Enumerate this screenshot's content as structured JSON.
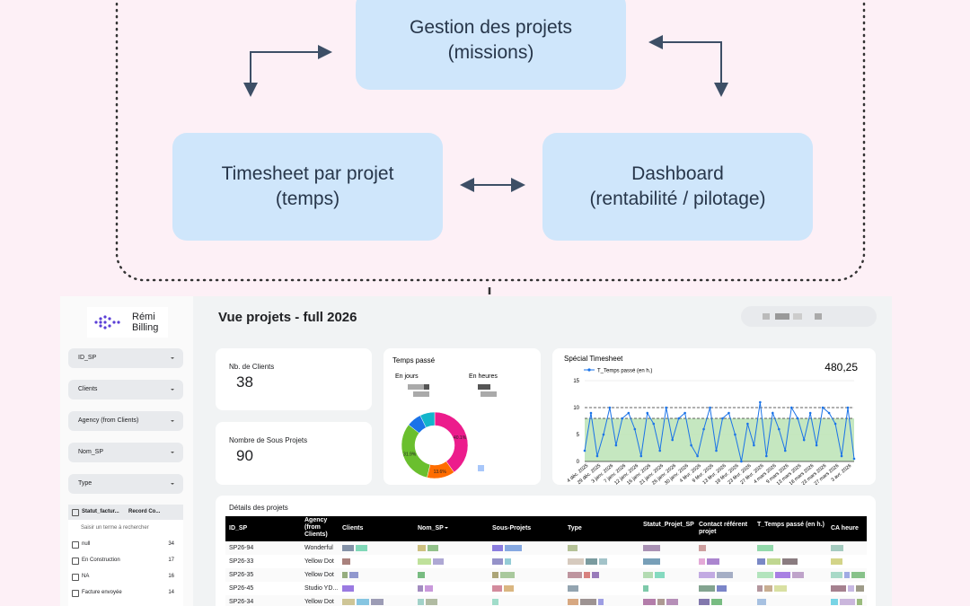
{
  "diagram": {
    "nodes": [
      {
        "lines": [
          "Gestion des projets",
          "(missions)"
        ]
      },
      {
        "lines": [
          "Timesheet par projet",
          "(temps)"
        ]
      },
      {
        "lines": [
          "Dashboard",
          "(rentabilité / pilotage)"
        ]
      }
    ]
  },
  "dashboard": {
    "logo": [
      "Rémi",
      "Billing"
    ],
    "title": "Vue projets - full 2026",
    "filters": [
      "ID_SP",
      "Clients",
      "Agency (from Clients)",
      "Nom_SP",
      "Type"
    ],
    "filter_list": {
      "headers": [
        "Statut_factur...",
        "Record Co..."
      ],
      "search": "Saisir un terme à rechercher",
      "items": [
        {
          "label": "null",
          "count": 34
        },
        {
          "label": "En Construction",
          "count": 17
        },
        {
          "label": "NA",
          "count": 16
        },
        {
          "label": "Facture envoyée",
          "count": 14
        }
      ]
    },
    "kpis": [
      {
        "label": "Nb. de Clients",
        "value": 38
      },
      {
        "label": "Nombre de Sous Projets",
        "value": 90
      }
    ],
    "table": {
      "title": "Détails des projets",
      "columns": [
        "ID_SP",
        "Agency (from Clients)",
        "Clients",
        "Nom_SP",
        "Sous-Projets",
        "Type",
        "Statut_Projet_SP",
        "Contact référent projet",
        "T_Temps passé (en h.)",
        "CA heure"
      ],
      "rows": [
        [
          "SP26-94",
          "Wonderful"
        ],
        [
          "SP26-33",
          "Yellow Dot"
        ],
        [
          "SP26-35",
          "Yellow Dot"
        ],
        [
          "SP26-45",
          "Studio YD..."
        ],
        [
          "SP26-34",
          "Yellow Dot"
        ]
      ]
    }
  },
  "chart_data": [
    {
      "type": "donut",
      "title": "Temps passé",
      "subtitles": [
        "En jours",
        "En heures"
      ],
      "values": [
        40.1,
        13.6,
        31.9,
        7.2,
        7.2
      ],
      "value_labels": [
        "40.1%",
        "13.6%",
        "31.9%",
        null,
        null
      ],
      "colors": [
        "#ec1c8c",
        "#ff6d00",
        "#6abf2e",
        "#1a73e8",
        "#12b5cb"
      ]
    },
    {
      "type": "line",
      "title": "Spécial Timesheet",
      "total": "480,25",
      "categories": [
        "4 déc. 2025",
        null,
        "29 déc. 2025",
        null,
        "3 janv. 2026",
        null,
        "7 janv. 2026",
        null,
        "12 janv. 2026",
        null,
        "16 janv. 2026",
        null,
        "21 janv. 2026",
        null,
        "26 janv. 2026",
        null,
        "30 janv. 2026",
        null,
        "4 févr. 2026",
        null,
        "9 févr. 2026",
        null,
        "13 févr. 2026",
        null,
        "18 févr. 2026",
        null,
        "23 févr. 2026",
        null,
        "27 févr. 2026",
        null,
        "4 mars 2026",
        null,
        "9 mars 2026",
        null,
        "13 mars 2026",
        null,
        "18 mars 2026",
        null,
        "23 mars 2026",
        null,
        "27 mars 2026",
        null,
        "3 avr. 2026",
        null
      ],
      "series": [
        {
          "name": "T_Temps passé (en h.)",
          "color": "#1a73e8",
          "values": [
            2,
            9,
            1,
            5,
            10,
            3,
            8,
            9,
            6,
            1,
            9,
            7,
            2,
            10,
            4,
            8,
            9,
            3,
            1,
            6,
            10,
            2,
            8,
            9,
            5,
            0,
            7,
            3,
            11,
            1,
            9,
            6,
            2,
            10,
            8,
            4,
            9,
            3,
            10,
            9,
            7,
            1,
            10,
            0.5
          ]
        }
      ],
      "ylim": [
        0,
        15
      ],
      "yticks": [
        0,
        5,
        10,
        15
      ],
      "reference_lines": [
        8,
        10
      ],
      "band_color": "#b7e1b0",
      "grid": true
    }
  ]
}
